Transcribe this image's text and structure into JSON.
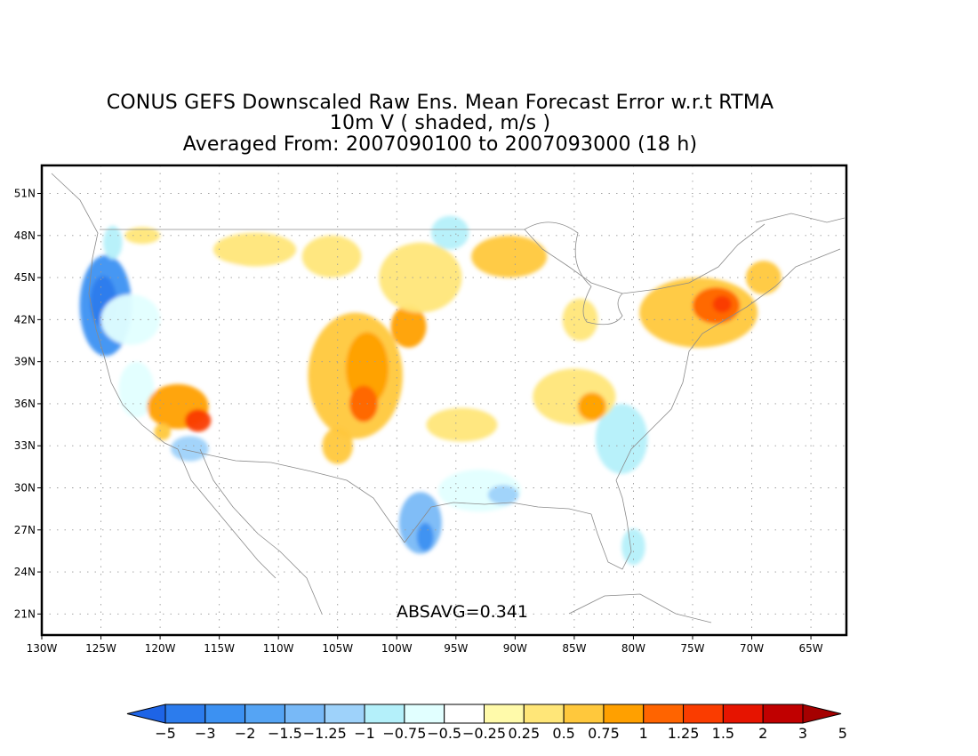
{
  "title": {
    "line1": "CONUS GEFS Downscaled Raw Ens. Mean Forecast Error w.r.t RTMA",
    "line2": "10m V ( shaded, m/s )",
    "line3": "Averaged From: 2007090100 to 2007093000 (18 h)"
  },
  "annotation": "ABSAVG=0.341",
  "colors": {
    "bins": [
      "#1e64e6",
      "#2c7ced",
      "#3c91f2",
      "#55a4f4",
      "#78b9f7",
      "#9ed2fa",
      "#b4f0fa",
      "#e1ffff",
      "#ffffff",
      "#fffaaa",
      "#ffe678",
      "#ffc83c",
      "#ffa000",
      "#ff6400",
      "#fa3c00",
      "#e61400",
      "#c00000",
      "#a50000"
    ]
  },
  "chart_data": {
    "type": "heatmap",
    "projection": "latlon",
    "xlim": [
      -130,
      -62
    ],
    "ylim": [
      19.5,
      53
    ],
    "grid": true,
    "x_ticks": [
      -130,
      -125,
      -120,
      -115,
      -110,
      -105,
      -100,
      -95,
      -90,
      -85,
      -80,
      -75,
      -70,
      -65
    ],
    "x_tick_labels": [
      "130W",
      "125W",
      "120W",
      "115W",
      "110W",
      "105W",
      "100W",
      "95W",
      "90W",
      "85W",
      "80W",
      "75W",
      "70W",
      "65W"
    ],
    "y_ticks": [
      21,
      24,
      27,
      30,
      33,
      36,
      39,
      42,
      45,
      48,
      51
    ],
    "y_tick_labels": [
      "21N",
      "24N",
      "27N",
      "30N",
      "33N",
      "36N",
      "39N",
      "42N",
      "45N",
      "48N",
      "51N"
    ],
    "colorbar": {
      "levels": [
        -5,
        -3,
        -2,
        -1.5,
        -1.25,
        -1,
        -0.75,
        -0.5,
        -0.25,
        0.25,
        0.5,
        0.75,
        1,
        1.25,
        1.5,
        2,
        3,
        5
      ],
      "labels": [
        "−5",
        "−3",
        "−2",
        "−1.5",
        "−1.25",
        "−1",
        "−0.75",
        "−0.5",
        "−0.25",
        "0.25",
        "0.5",
        "0.75",
        "1",
        "1.25",
        "1.5",
        "2",
        "3",
        "5"
      ]
    },
    "regions": [
      {
        "name": "northwest-negative",
        "lon": -124.6,
        "lat": 43.0,
        "rx": 2.2,
        "ry": 3.6,
        "value": -2.5
      },
      {
        "name": "northwest-negative-inner",
        "lon": -124.8,
        "lat": 43.3,
        "rx": 1.1,
        "ry": 1.8,
        "value": -3.2
      },
      {
        "name": "great-basin-negative",
        "lon": -122.5,
        "lat": 42.0,
        "rx": 2.5,
        "ry": 1.8,
        "value": -0.6
      },
      {
        "name": "cascade-negative",
        "lon": -124.0,
        "lat": 47.5,
        "rx": 0.8,
        "ry": 1.2,
        "value": -0.8
      },
      {
        "name": "cal-coast-negative",
        "lon": -122.0,
        "lat": 37.0,
        "rx": 1.5,
        "ry": 2.0,
        "value": -0.55
      },
      {
        "name": "socal-negative",
        "lon": -117.5,
        "lat": 32.8,
        "rx": 1.6,
        "ry": 0.9,
        "value": -1.2
      },
      {
        "name": "nevada-negative",
        "lon": -112.5,
        "lat": 38.5,
        "rx": 1.8,
        "ry": 2.0,
        "value": -0.4
      },
      {
        "name": "montana-negative",
        "lon": -114.0,
        "lat": 45.0,
        "rx": 1.5,
        "ry": 1.0,
        "value": -0.4
      },
      {
        "name": "south-texas-negative",
        "lon": -98.0,
        "lat": 27.5,
        "rx": 1.8,
        "ry": 2.2,
        "value": -1.3
      },
      {
        "name": "south-texas-core",
        "lon": -97.6,
        "lat": 26.5,
        "rx": 0.7,
        "ry": 1.0,
        "value": -2.2
      },
      {
        "name": "gulf-negative",
        "lon": -93.0,
        "lat": 29.8,
        "rx": 3.5,
        "ry": 1.5,
        "value": -0.6
      },
      {
        "name": "louisiana-negative",
        "lon": -91.0,
        "lat": 29.5,
        "rx": 1.3,
        "ry": 0.7,
        "value": -1.1
      },
      {
        "name": "dakota-negative",
        "lon": -95.5,
        "lat": 48.2,
        "rx": 1.6,
        "ry": 1.2,
        "value": -0.9
      },
      {
        "name": "southeast-negative",
        "lon": -81.0,
        "lat": 33.5,
        "rx": 2.2,
        "ry": 2.5,
        "value": -0.8
      },
      {
        "name": "florida-negative",
        "lon": -80.0,
        "lat": 25.8,
        "rx": 1.0,
        "ry": 1.3,
        "value": -1.0
      },
      {
        "name": "gulf-coast-negative",
        "lon": -84.5,
        "lat": 30.0,
        "rx": 2.5,
        "ry": 1.5,
        "value": -0.4
      },
      {
        "name": "arizona-positive",
        "lon": -118.5,
        "lat": 35.8,
        "rx": 2.6,
        "ry": 1.6,
        "value": 0.9
      },
      {
        "name": "arizona-core",
        "lon": -116.8,
        "lat": 34.8,
        "rx": 1.1,
        "ry": 0.8,
        "value": 1.4
      },
      {
        "name": "baja-positive",
        "lon": -119.8,
        "lat": 34.0,
        "rx": 0.7,
        "ry": 0.6,
        "value": 0.6
      },
      {
        "name": "plains-positive",
        "lon": -103.5,
        "lat": 38.0,
        "rx": 4.0,
        "ry": 4.5,
        "value": 0.55
      },
      {
        "name": "colorado-core",
        "lon": -102.5,
        "lat": 38.5,
        "rx": 1.8,
        "ry": 2.6,
        "value": 0.85
      },
      {
        "name": "kansas-core",
        "lon": -102.8,
        "lat": 36.0,
        "rx": 1.2,
        "ry": 1.3,
        "value": 1.0
      },
      {
        "name": "nebraska-positive",
        "lon": -99.0,
        "lat": 41.5,
        "rx": 1.5,
        "ry": 1.5,
        "value": 0.8
      },
      {
        "name": "montana-positive",
        "lon": -105.5,
        "lat": 46.5,
        "rx": 2.5,
        "ry": 1.5,
        "value": 0.45
      },
      {
        "name": "north-positive",
        "lon": -98.0,
        "lat": 45.0,
        "rx": 3.5,
        "ry": 2.5,
        "value": 0.4
      },
      {
        "name": "northern-rockies-positive",
        "lon": -112.0,
        "lat": 47.0,
        "rx": 3.5,
        "ry": 1.2,
        "value": 0.35
      },
      {
        "name": "great-lakes-positive",
        "lon": -90.5,
        "lat": 46.5,
        "rx": 3.2,
        "ry": 1.5,
        "value": 0.55
      },
      {
        "name": "oklahoma-positive",
        "lon": -94.5,
        "lat": 34.5,
        "rx": 3.0,
        "ry": 1.2,
        "value": 0.45
      },
      {
        "name": "new-mexico-positive",
        "lon": -105.0,
        "lat": 33.0,
        "rx": 1.3,
        "ry": 1.3,
        "value": 0.5
      },
      {
        "name": "tennessee-positive",
        "lon": -85.0,
        "lat": 36.5,
        "rx": 3.5,
        "ry": 2.0,
        "value": 0.45
      },
      {
        "name": "tennessee-core",
        "lon": -83.5,
        "lat": 35.8,
        "rx": 1.2,
        "ry": 1.0,
        "value": 0.9
      },
      {
        "name": "michigan-positive",
        "lon": -84.5,
        "lat": 42.0,
        "rx": 1.5,
        "ry": 1.5,
        "value": 0.45
      },
      {
        "name": "northeast-positive",
        "lon": -74.5,
        "lat": 42.5,
        "rx": 5.0,
        "ry": 2.5,
        "value": 0.55
      },
      {
        "name": "newyork-core",
        "lon": -73.0,
        "lat": 43.0,
        "rx": 2.0,
        "ry": 1.3,
        "value": 1.0
      },
      {
        "name": "newyork-max",
        "lon": -72.5,
        "lat": 43.1,
        "rx": 0.8,
        "ry": 0.6,
        "value": 1.3
      },
      {
        "name": "maine-positive",
        "lon": -69.0,
        "lat": 45.0,
        "rx": 1.5,
        "ry": 1.2,
        "value": 0.7
      },
      {
        "name": "california-positive",
        "lon": -121.5,
        "lat": 48.0,
        "rx": 1.5,
        "ry": 0.6,
        "value": 0.35
      }
    ]
  }
}
